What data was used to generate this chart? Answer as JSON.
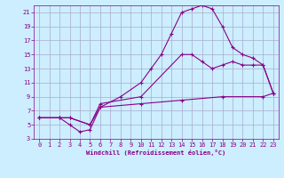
{
  "xlabel": "Windchill (Refroidissement éolien,°C)",
  "bg_color": "#cceeff",
  "grid_color": "#aaaacc",
  "line_color": "#880088",
  "xlim": [
    -0.5,
    23.5
  ],
  "ylim": [
    3,
    22
  ],
  "xticks": [
    0,
    1,
    2,
    3,
    4,
    5,
    6,
    7,
    8,
    9,
    10,
    11,
    12,
    13,
    14,
    15,
    16,
    17,
    18,
    19,
    20,
    21,
    22,
    23
  ],
  "yticks": [
    3,
    5,
    7,
    9,
    11,
    13,
    15,
    17,
    19,
    21
  ],
  "line1_x": [
    0,
    2,
    3,
    5,
    6,
    10,
    14,
    15,
    16,
    17,
    18,
    19,
    20,
    21,
    22,
    23
  ],
  "line1_y": [
    6,
    6,
    6,
    5,
    8,
    9,
    15,
    15,
    14,
    13,
    13.5,
    14,
    13.5,
    13.5,
    13.5,
    9.5
  ],
  "line2_x": [
    0,
    2,
    3,
    4,
    5,
    6,
    8,
    10,
    11,
    12,
    13,
    14,
    15,
    16,
    17,
    18,
    19,
    20,
    21,
    22,
    23
  ],
  "line2_y": [
    6,
    6,
    5,
    4,
    4.3,
    7.5,
    9,
    11,
    13,
    15,
    18,
    21,
    21.5,
    22,
    21.5,
    19,
    16,
    15,
    14.5,
    13.5,
    9.5
  ],
  "line3_x": [
    0,
    2,
    3,
    5,
    6,
    10,
    14,
    18,
    22,
    23
  ],
  "line3_y": [
    6,
    6,
    6,
    5,
    7.5,
    8,
    8.5,
    9,
    9,
    9.5
  ]
}
